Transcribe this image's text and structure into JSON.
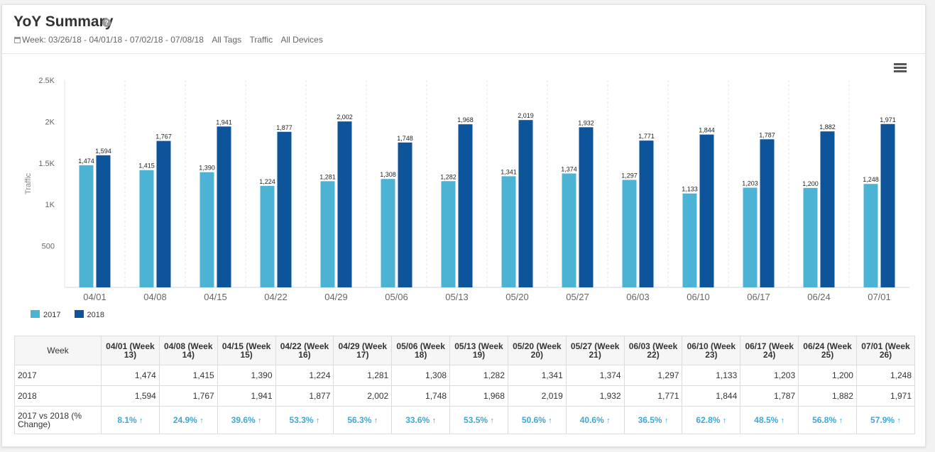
{
  "header": {
    "title": "YoY Summary",
    "help_icon": "?",
    "date_range": "Week: 03/26/18 - 04/01/18 - 07/02/18 - 07/08/18",
    "tags": "All Tags",
    "metric": "Traffic",
    "devices": "All Devices"
  },
  "colors": {
    "y2017": "#4db3d5",
    "y2018": "#0e549a",
    "pct": "#3fa7d4"
  },
  "chart_data": {
    "type": "bar",
    "categories": [
      "04/01",
      "04/08",
      "04/15",
      "04/22",
      "04/29",
      "05/06",
      "05/13",
      "05/20",
      "05/27",
      "06/03",
      "06/10",
      "06/17",
      "06/24",
      "07/01"
    ],
    "series": [
      {
        "name": "2017",
        "values": [
          1474,
          1415,
          1390,
          1224,
          1281,
          1308,
          1282,
          1341,
          1374,
          1297,
          1133,
          1203,
          1200,
          1248
        ],
        "labels": [
          "1,474",
          "1,415",
          "1,390",
          "1,224",
          "1,281",
          "1,308",
          "1,282",
          "1,341",
          "1,374",
          "1,297",
          "1,133",
          "1,203",
          "1,200",
          "1,248"
        ]
      },
      {
        "name": "2018",
        "values": [
          1594,
          1767,
          1941,
          1877,
          2002,
          1748,
          1968,
          2019,
          1932,
          1771,
          1844,
          1787,
          1882,
          1971
        ],
        "labels": [
          "1,594",
          "1,767",
          "1,941",
          "1,877",
          "2,002",
          "1,748",
          "1,968",
          "2,019",
          "1,932",
          "1,771",
          "1,844",
          "1,787",
          "1,882",
          "1,971"
        ]
      }
    ],
    "ylabel": "Traffic",
    "xlabel": "",
    "ylim": [
      0,
      2500
    ],
    "yticks": [
      500,
      1000,
      1500,
      2000,
      2500
    ],
    "ytick_labels": [
      "500",
      "1K",
      "1.5K",
      "2K",
      "2.5K"
    ],
    "grid": "x-dashed",
    "legend": "bottom-left"
  },
  "table": {
    "header_label": "Week",
    "columns": [
      "04/01 (Week 13)",
      "04/08 (Week 14)",
      "04/15 (Week 15)",
      "04/22 (Week 16)",
      "04/29 (Week 17)",
      "05/06 (Week 18)",
      "05/13 (Week 19)",
      "05/20 (Week 20)",
      "05/27 (Week 21)",
      "06/03 (Week 22)",
      "06/10 (Week 23)",
      "06/17 (Week 24)",
      "06/24 (Week 25)",
      "07/01 (Week 26)"
    ],
    "rows": [
      {
        "label": "2017",
        "cells": [
          "1,474",
          "1,415",
          "1,390",
          "1,224",
          "1,281",
          "1,308",
          "1,282",
          "1,341",
          "1,374",
          "1,297",
          "1,133",
          "1,203",
          "1,200",
          "1,248"
        ]
      },
      {
        "label": "2018",
        "cells": [
          "1,594",
          "1,767",
          "1,941",
          "1,877",
          "2,002",
          "1,748",
          "1,968",
          "2,019",
          "1,932",
          "1,771",
          "1,844",
          "1,787",
          "1,882",
          "1,971"
        ]
      }
    ],
    "pct_row": {
      "label": "2017 vs 2018 (% Change)",
      "cells": [
        "8.1%",
        "24.9%",
        "39.6%",
        "53.3%",
        "56.3%",
        "33.6%",
        "53.5%",
        "50.6%",
        "40.6%",
        "36.5%",
        "62.8%",
        "48.5%",
        "56.8%",
        "57.9%"
      ],
      "arrow": "↑"
    }
  }
}
